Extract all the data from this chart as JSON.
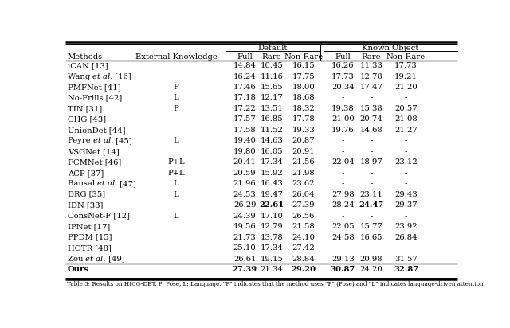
{
  "header_group1": "Default",
  "header_group2": "Known Object",
  "rows": [
    {
      "method": "iCAN [13]",
      "italic": false,
      "ext": "",
      "d_full": "14.84",
      "d_rare": "10.45",
      "d_nonrare": "16.15",
      "k_full": "16.26",
      "k_rare": "11.33",
      "k_nonrare": "17.73",
      "bold_d_rare": false,
      "bold_k_rare": false
    },
    {
      "method": "Wang et al. [16]",
      "italic": true,
      "ext": "",
      "d_full": "16.24",
      "d_rare": "11.16",
      "d_nonrare": "17.75",
      "k_full": "17.73",
      "k_rare": "12.78",
      "k_nonrare": "19.21",
      "bold_d_rare": false,
      "bold_k_rare": false
    },
    {
      "method": "PMFNet [41]",
      "italic": false,
      "ext": "P",
      "d_full": "17.46",
      "d_rare": "15.65",
      "d_nonrare": "18.00",
      "k_full": "20.34",
      "k_rare": "17.47",
      "k_nonrare": "21.20",
      "bold_d_rare": false,
      "bold_k_rare": false
    },
    {
      "method": "No-Frills [42]",
      "italic": false,
      "ext": "L",
      "d_full": "17.18",
      "d_rare": "12.17",
      "d_nonrare": "18.68",
      "k_full": "-",
      "k_rare": "-",
      "k_nonrare": "-",
      "bold_d_rare": false,
      "bold_k_rare": false
    },
    {
      "method": "TIN [31]",
      "italic": false,
      "ext": "P",
      "d_full": "17.22",
      "d_rare": "13.51",
      "d_nonrare": "18.32",
      "k_full": "19.38",
      "k_rare": "15.38",
      "k_nonrare": "20.57",
      "bold_d_rare": false,
      "bold_k_rare": false
    },
    {
      "method": "CHG [43]",
      "italic": false,
      "ext": "",
      "d_full": "17.57",
      "d_rare": "16.85",
      "d_nonrare": "17.78",
      "k_full": "21.00",
      "k_rare": "20.74",
      "k_nonrare": "21.08",
      "bold_d_rare": false,
      "bold_k_rare": false
    },
    {
      "method": "UnionDet [44]",
      "italic": false,
      "ext": "",
      "d_full": "17.58",
      "d_rare": "11.52",
      "d_nonrare": "19.33",
      "k_full": "19.76",
      "k_rare": "14.68",
      "k_nonrare": "21.27",
      "bold_d_rare": false,
      "bold_k_rare": false
    },
    {
      "method": "Peyre et al. [45]",
      "italic": true,
      "ext": "L",
      "d_full": "19.40",
      "d_rare": "14.63",
      "d_nonrare": "20.87",
      "k_full": "-",
      "k_rare": "-",
      "k_nonrare": "-",
      "bold_d_rare": false,
      "bold_k_rare": false
    },
    {
      "method": "VSGNet [14]",
      "italic": false,
      "ext": "",
      "d_full": "19.80",
      "d_rare": "16.05",
      "d_nonrare": "20.91",
      "k_full": "-",
      "k_rare": "-",
      "k_nonrare": "-",
      "bold_d_rare": false,
      "bold_k_rare": false
    },
    {
      "method": "FCMNet [46]",
      "italic": false,
      "ext": "P+L",
      "d_full": "20.41",
      "d_rare": "17.34",
      "d_nonrare": "21.56",
      "k_full": "22.04",
      "k_rare": "18.97",
      "k_nonrare": "23.12",
      "bold_d_rare": false,
      "bold_k_rare": false
    },
    {
      "method": "ACP [37]",
      "italic": false,
      "ext": "P+L",
      "d_full": "20.59",
      "d_rare": "15.92",
      "d_nonrare": "21.98",
      "k_full": "-",
      "k_rare": "-",
      "k_nonrare": "-",
      "bold_d_rare": false,
      "bold_k_rare": false
    },
    {
      "method": "Bansal et al. [47]",
      "italic": true,
      "ext": "L",
      "d_full": "21.96",
      "d_rare": "16.43",
      "d_nonrare": "23.62",
      "k_full": "-",
      "k_rare": "-",
      "k_nonrare": "-",
      "bold_d_rare": false,
      "bold_k_rare": false
    },
    {
      "method": "DRG [35]",
      "italic": false,
      "ext": "L",
      "d_full": "24.53",
      "d_rare": "19.47",
      "d_nonrare": "26.04",
      "k_full": "27.98",
      "k_rare": "23.11",
      "k_nonrare": "29.43",
      "bold_d_rare": false,
      "bold_k_rare": false
    },
    {
      "method": "IDN [38]",
      "italic": false,
      "ext": "",
      "d_full": "26.29",
      "d_rare": "22.61",
      "d_nonrare": "27.39",
      "k_full": "28.24",
      "k_rare": "24.47",
      "k_nonrare": "29.37",
      "bold_d_rare": true,
      "bold_k_rare": true
    },
    {
      "method": "ConsNet-F [12]",
      "italic": false,
      "ext": "L",
      "d_full": "24.39",
      "d_rare": "17.10",
      "d_nonrare": "26.56",
      "k_full": "-",
      "k_rare": "-",
      "k_nonrare": "-",
      "bold_d_rare": false,
      "bold_k_rare": false
    },
    {
      "method": "IPNet [17]",
      "italic": false,
      "ext": "",
      "d_full": "19.56",
      "d_rare": "12.79",
      "d_nonrare": "21.58",
      "k_full": "22.05",
      "k_rare": "15.77",
      "k_nonrare": "23.92",
      "bold_d_rare": false,
      "bold_k_rare": false
    },
    {
      "method": "PPDM [15]",
      "italic": false,
      "ext": "",
      "d_full": "21.73",
      "d_rare": "13.78",
      "d_nonrare": "24.10",
      "k_full": "24.58",
      "k_rare": "16.65",
      "k_nonrare": "26.84",
      "bold_d_rare": false,
      "bold_k_rare": false
    },
    {
      "method": "HOTR [48]",
      "italic": false,
      "ext": "",
      "d_full": "25.10",
      "d_rare": "17.34",
      "d_nonrare": "27.42",
      "k_full": "-",
      "k_rare": "-",
      "k_nonrare": "-",
      "bold_d_rare": false,
      "bold_k_rare": false
    },
    {
      "method": "Zou et al. [49]",
      "italic": true,
      "ext": "",
      "d_full": "26.61",
      "d_rare": "19.15",
      "d_nonrare": "28.84",
      "k_full": "29.13",
      "k_rare": "20.98",
      "k_nonrare": "31.57",
      "bold_d_rare": false,
      "bold_k_rare": false
    }
  ],
  "ours": {
    "method": "Ours",
    "ext": "",
    "d_full": "27.39",
    "d_rare": "21.34",
    "d_nonrare": "29.20",
    "k_full": "30.87",
    "k_rare": "24.20",
    "k_nonrare": "32.87"
  },
  "bold_ours": [
    true,
    false,
    true,
    true,
    false,
    true
  ],
  "caption": "Table 3: Results on HICO-DET. P: Pose, L: Language. \"P\" indicates that the method uses \"P\" (Pose) and \"L\" indicates language-driven attention.",
  "bg_color": "#ffffff",
  "font_size": 7.2
}
